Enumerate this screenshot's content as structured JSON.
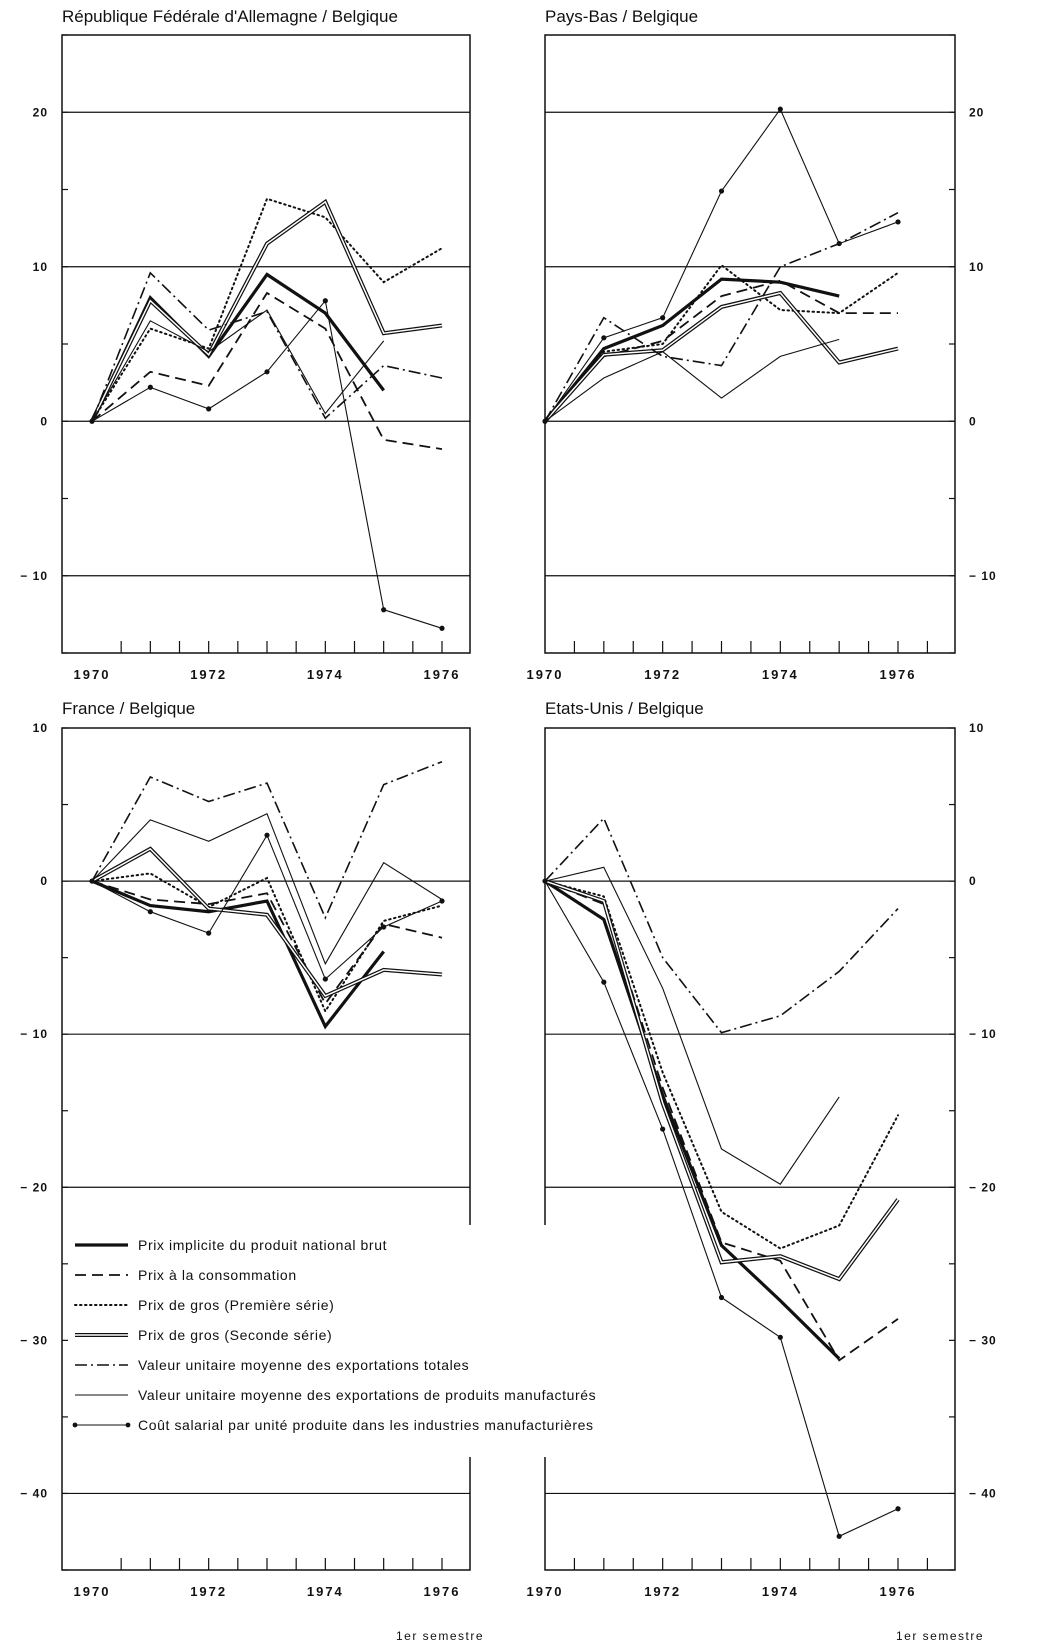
{
  "chart_data": [
    {
      "type": "line",
      "title": "République Fédérale d'Allemagne / Belgique",
      "x": [
        "1970",
        "1971",
        "1972",
        "1973",
        "1974",
        "1975",
        "1976"
      ],
      "xtick_labels": [
        "1970",
        "1972",
        "1974",
        "1976"
      ],
      "xtick_note": "",
      "ylim": [
        -15,
        25
      ],
      "yticks": [
        20,
        10,
        0,
        -10
      ],
      "ytick_labels": [
        "20",
        "10",
        "0",
        "− 10"
      ],
      "grid": [
        20,
        10,
        0,
        -10
      ],
      "series": [
        {
          "key": "gnp",
          "values": [
            0,
            8.0,
            4.2,
            9.5,
            7.0,
            2.0,
            null
          ]
        },
        {
          "key": "cpi",
          "values": [
            0,
            3.2,
            2.3,
            8.3,
            6.0,
            -1.2,
            -1.8
          ]
        },
        {
          "key": "wp1",
          "values": [
            0,
            6.0,
            4.7,
            14.4,
            13.2,
            9.0,
            11.2
          ]
        },
        {
          "key": "wp2",
          "values": [
            0,
            7.8,
            4.3,
            11.5,
            14.2,
            5.7,
            6.2
          ]
        },
        {
          "key": "uv_tot",
          "values": [
            0,
            9.6,
            5.9,
            7.1,
            0.2,
            3.6,
            2.8
          ]
        },
        {
          "key": "uv_man",
          "values": [
            0,
            6.5,
            4.5,
            7.2,
            0.5,
            5.2,
            null
          ]
        },
        {
          "key": "ulc",
          "values": [
            0,
            2.2,
            0.8,
            3.2,
            7.8,
            -12.2,
            -13.4
          ]
        }
      ]
    },
    {
      "type": "line",
      "title": "Pays-Bas / Belgique",
      "x": [
        "1970",
        "1971",
        "1972",
        "1973",
        "1974",
        "1975",
        "1976"
      ],
      "xtick_labels": [
        "1970",
        "1972",
        "1974",
        "1976"
      ],
      "xtick_note": "",
      "ylim": [
        -15,
        25
      ],
      "yticks": [
        20,
        10,
        0,
        -10
      ],
      "ytick_labels": [
        "20",
        "10",
        "0",
        "− 10"
      ],
      "grid": [
        20,
        10,
        0,
        -10
      ],
      "series": [
        {
          "key": "gnp",
          "values": [
            0,
            4.7,
            6.2,
            9.2,
            9.0,
            8.1,
            null
          ]
        },
        {
          "key": "cpi",
          "values": [
            0,
            4.2,
            5.2,
            8.1,
            9.1,
            7.0,
            7.0
          ]
        },
        {
          "key": "wp1",
          "values": [
            0,
            4.5,
            5.0,
            10.1,
            7.2,
            7.0,
            9.6
          ]
        },
        {
          "key": "wp2",
          "values": [
            0,
            4.3,
            4.6,
            7.4,
            8.3,
            3.8,
            4.7
          ]
        },
        {
          "key": "uv_tot",
          "values": [
            0,
            6.7,
            4.2,
            3.6,
            10.0,
            11.5,
            13.5
          ]
        },
        {
          "key": "uv_man",
          "values": [
            0,
            2.8,
            4.5,
            1.5,
            4.2,
            5.3,
            null
          ]
        },
        {
          "key": "ulc",
          "values": [
            0,
            5.4,
            6.7,
            14.9,
            20.2,
            11.5,
            12.9
          ]
        }
      ]
    },
    {
      "type": "line",
      "title": "France / Belgique",
      "x": [
        "1970",
        "1971",
        "1972",
        "1973",
        "1974",
        "1975",
        "1976"
      ],
      "xtick_labels": [
        "1970",
        "1972",
        "1974",
        "1976"
      ],
      "xtick_note": "1er semestre",
      "ylim": [
        -45,
        10
      ],
      "yticks": [
        10,
        0,
        -10,
        -20,
        -30,
        -40
      ],
      "ytick_labels": [
        "10",
        "0",
        "− 10",
        "− 20",
        "− 30",
        "− 40"
      ],
      "grid": [
        0,
        -10,
        -20,
        -40
      ],
      "series": [
        {
          "key": "gnp",
          "values": [
            0,
            -1.6,
            -2.0,
            -1.3,
            -9.5,
            -4.6,
            null
          ]
        },
        {
          "key": "cpi",
          "values": [
            0,
            -1.2,
            -1.5,
            -0.8,
            -8.0,
            -2.8,
            -3.7
          ]
        },
        {
          "key": "wp1",
          "values": [
            0,
            0.5,
            -1.7,
            0.2,
            -8.5,
            -2.6,
            -1.6
          ]
        },
        {
          "key": "wp2",
          "values": [
            0,
            2.1,
            -1.8,
            -2.2,
            -7.5,
            -5.8,
            -6.1
          ]
        },
        {
          "key": "uv_tot",
          "values": [
            0,
            6.8,
            5.2,
            6.4,
            -2.4,
            6.3,
            7.8
          ]
        },
        {
          "key": "uv_man",
          "values": [
            0,
            4.0,
            2.6,
            4.4,
            -5.4,
            1.2,
            -1.2
          ]
        },
        {
          "key": "ulc",
          "values": [
            0,
            -2.0,
            -3.4,
            3.0,
            -6.4,
            -3.0,
            -1.3
          ]
        }
      ]
    },
    {
      "type": "line",
      "title": "Etats-Unis / Belgique",
      "x": [
        "1970",
        "1971",
        "1972",
        "1973",
        "1974",
        "1975",
        "1976"
      ],
      "xtick_labels": [
        "1970",
        "1972",
        "1974",
        "1976"
      ],
      "xtick_note": "1er semestre",
      "ylim": [
        -45,
        10
      ],
      "yticks": [
        10,
        0,
        -10,
        -20,
        -30,
        -40
      ],
      "ytick_labels": [
        "10",
        "0",
        "− 10",
        "− 20",
        "− 30",
        "− 40"
      ],
      "grid": [
        0,
        -10,
        -20,
        -40
      ],
      "series": [
        {
          "key": "gnp",
          "values": [
            0,
            -2.5,
            -14.0,
            -23.8,
            -27.4,
            -31.2,
            null
          ]
        },
        {
          "key": "cpi",
          "values": [
            0,
            -1.5,
            -13.5,
            -23.6,
            -24.8,
            -31.3,
            -28.6
          ]
        },
        {
          "key": "wp1",
          "values": [
            0,
            -1.0,
            -12.5,
            -21.6,
            -24.0,
            -22.5,
            -15.3
          ]
        },
        {
          "key": "wp2",
          "values": [
            0,
            -1.3,
            -14.5,
            -24.9,
            -24.5,
            -26.0,
            -20.8
          ]
        },
        {
          "key": "uv_tot",
          "values": [
            0,
            4.1,
            -5.0,
            -9.9,
            -8.8,
            -5.9,
            -1.8
          ]
        },
        {
          "key": "uv_man",
          "values": [
            0,
            0.9,
            -7.0,
            -17.5,
            -19.8,
            -14.1,
            null
          ]
        },
        {
          "key": "ulc",
          "values": [
            0,
            -6.6,
            -16.2,
            -27.2,
            -29.8,
            -42.8,
            -41.0
          ]
        }
      ]
    }
  ],
  "legend": [
    {
      "key": "gnp",
      "label": "Prix implicite du produit national brut"
    },
    {
      "key": "cpi",
      "label": "Prix à la consommation"
    },
    {
      "key": "wp1",
      "label": "Prix de gros (Première série)"
    },
    {
      "key": "wp2",
      "label": "Prix de gros (Seconde série)"
    },
    {
      "key": "uv_tot",
      "label": "Valeur unitaire moyenne des exportations totales"
    },
    {
      "key": "uv_man",
      "label": "Valeur unitaire moyenne des exportations de produits manufacturés"
    },
    {
      "key": "ulc",
      "label": "Coût salarial par unité produite dans les industries manufacturières"
    }
  ],
  "colors": {
    "ink": "#111111",
    "background": "#ffffff"
  }
}
